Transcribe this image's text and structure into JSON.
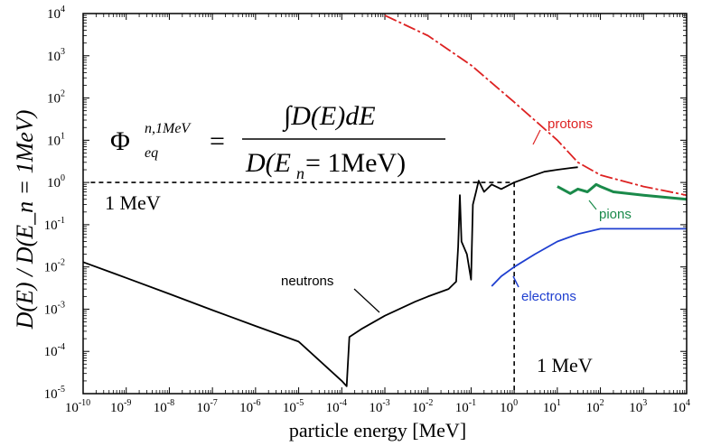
{
  "chart_data": {
    "type": "line",
    "xlabel": "particle energy [MeV]",
    "ylabel": "D(E) / D(E_n = 1MeV)",
    "xscale": "log",
    "yscale": "log",
    "xlim": [
      1e-10,
      10000.0
    ],
    "ylim": [
      1e-05,
      10000.0
    ],
    "x_ticks": [
      {
        "base": "10",
        "exp": "-10",
        "v": -10
      },
      {
        "base": "10",
        "exp": "-9",
        "v": -9
      },
      {
        "base": "10",
        "exp": "-8",
        "v": -8
      },
      {
        "base": "10",
        "exp": "-7",
        "v": -7
      },
      {
        "base": "10",
        "exp": "-6",
        "v": -6
      },
      {
        "base": "10",
        "exp": "-5",
        "v": -5
      },
      {
        "base": "10",
        "exp": "-4",
        "v": -4
      },
      {
        "base": "10",
        "exp": "-3",
        "v": -3
      },
      {
        "base": "10",
        "exp": "-2",
        "v": -2
      },
      {
        "base": "10",
        "exp": "-1",
        "v": -1
      },
      {
        "base": "10",
        "exp": "0",
        "v": 0
      },
      {
        "base": "10",
        "exp": "1",
        "v": 1
      },
      {
        "base": "10",
        "exp": "2",
        "v": 2
      },
      {
        "base": "10",
        "exp": "3",
        "v": 3
      },
      {
        "base": "10",
        "exp": "4",
        "v": 4
      }
    ],
    "y_ticks": [
      {
        "base": "10",
        "exp": "-5",
        "v": -5
      },
      {
        "base": "10",
        "exp": "-4",
        "v": -4
      },
      {
        "base": "10",
        "exp": "-3",
        "v": -3
      },
      {
        "base": "10",
        "exp": "-2",
        "v": -2
      },
      {
        "base": "10",
        "exp": "-1",
        "v": -1
      },
      {
        "base": "10",
        "exp": "0",
        "v": 0
      },
      {
        "base": "10",
        "exp": "1",
        "v": 1
      },
      {
        "base": "10",
        "exp": "2",
        "v": 2
      },
      {
        "base": "10",
        "exp": "3",
        "v": 3
      },
      {
        "base": "10",
        "exp": "4",
        "v": 4
      }
    ],
    "series": [
      {
        "name": "neutrons",
        "color": "#000000",
        "points": [
          [
            1e-10,
            0.013
          ],
          [
            1e-09,
            0.0055
          ],
          [
            1e-08,
            0.0023
          ],
          [
            1e-07,
            0.00095
          ],
          [
            1e-06,
            0.0004
          ],
          [
            1e-05,
            0.00017
          ],
          [
            0.0001,
            2e-05
          ],
          [
            0.00013,
            1.5e-05
          ],
          [
            0.00015,
            0.00022
          ],
          [
            0.0003,
            0.00035
          ],
          [
            0.001,
            0.0007
          ],
          [
            0.005,
            0.0015
          ],
          [
            0.01,
            0.002
          ],
          [
            0.03,
            0.003
          ],
          [
            0.045,
            0.0045
          ],
          [
            0.05,
            0.03
          ],
          [
            0.055,
            0.5
          ],
          [
            0.06,
            0.04
          ],
          [
            0.08,
            0.02
          ],
          [
            0.1,
            0.005
          ],
          [
            0.11,
            0.3
          ],
          [
            0.13,
            0.6
          ],
          [
            0.15,
            1.1
          ],
          [
            0.2,
            0.6
          ],
          [
            0.3,
            0.9
          ],
          [
            0.5,
            0.7
          ],
          [
            1,
            1.0
          ],
          [
            2,
            1.3
          ],
          [
            5,
            1.8
          ],
          [
            10,
            2.0
          ],
          [
            20,
            2.2
          ],
          [
            30,
            2.3
          ]
        ]
      },
      {
        "name": "protons",
        "color": "#dd2222",
        "points": [
          [
            0.001,
            9000
          ],
          [
            0.01,
            3000
          ],
          [
            0.1,
            600
          ],
          [
            1,
            80
          ],
          [
            10,
            10
          ],
          [
            30,
            3
          ],
          [
            100,
            1.5
          ],
          [
            1000,
            0.8
          ],
          [
            10000,
            0.5
          ]
        ]
      },
      {
        "name": "pions",
        "color": "#1a8a4a",
        "points": [
          [
            10,
            0.8
          ],
          [
            20,
            0.55
          ],
          [
            30,
            0.7
          ],
          [
            50,
            0.6
          ],
          [
            80,
            0.9
          ],
          [
            100,
            0.8
          ],
          [
            200,
            0.6
          ],
          [
            1000,
            0.5
          ],
          [
            10000,
            0.4
          ]
        ]
      },
      {
        "name": "electrons",
        "color": "#1f3fd0",
        "points": [
          [
            0.3,
            0.0035
          ],
          [
            0.5,
            0.006
          ],
          [
            1,
            0.01
          ],
          [
            3,
            0.02
          ],
          [
            10,
            0.04
          ],
          [
            30,
            0.06
          ],
          [
            100,
            0.08
          ],
          [
            1000,
            0.08
          ],
          [
            10000,
            0.08
          ]
        ]
      }
    ],
    "annotations": {
      "energy_marker_left": "1 MeV",
      "energy_marker_bottom": "1 MeV",
      "formula": {
        "lhs_symbol": "Φ",
        "lhs_sup": "n,1MeV",
        "lhs_sub": "eq",
        "equals": "=",
        "numerator": "∫D(E)dE",
        "denominator": "D(E",
        "denominator_sub": "n",
        "denominator_tail": " = 1MeV)"
      }
    }
  }
}
